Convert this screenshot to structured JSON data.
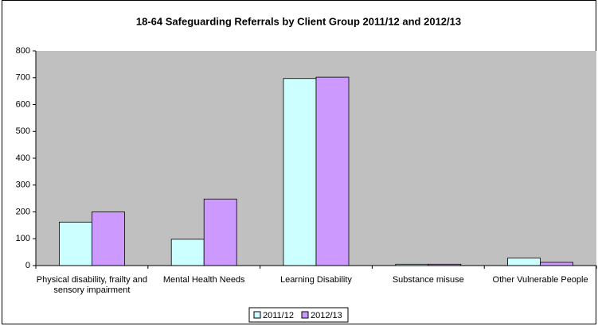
{
  "chart_data": {
    "type": "bar",
    "title": "18-64 Safeguarding Referrals by Client Group 2011/12 and 2012/13",
    "categories": [
      "Physical disability, frailty and sensory impairment",
      "Mental Health Needs",
      "Learning Disability",
      "Substance misuse",
      "Other Vulnerable People"
    ],
    "series": [
      {
        "name": "2011/12",
        "color": "#ccffff",
        "values": [
          162,
          98,
          697,
          5,
          28
        ]
      },
      {
        "name": "2012/13",
        "color": "#cc99ff",
        "values": [
          200,
          248,
          702,
          5,
          12
        ]
      }
    ],
    "ylim": [
      0,
      800
    ],
    "yticks": [
      0,
      100,
      200,
      300,
      400,
      500,
      600,
      700,
      800
    ],
    "plot_background": "#c0c0c0",
    "legend": "bottom"
  }
}
